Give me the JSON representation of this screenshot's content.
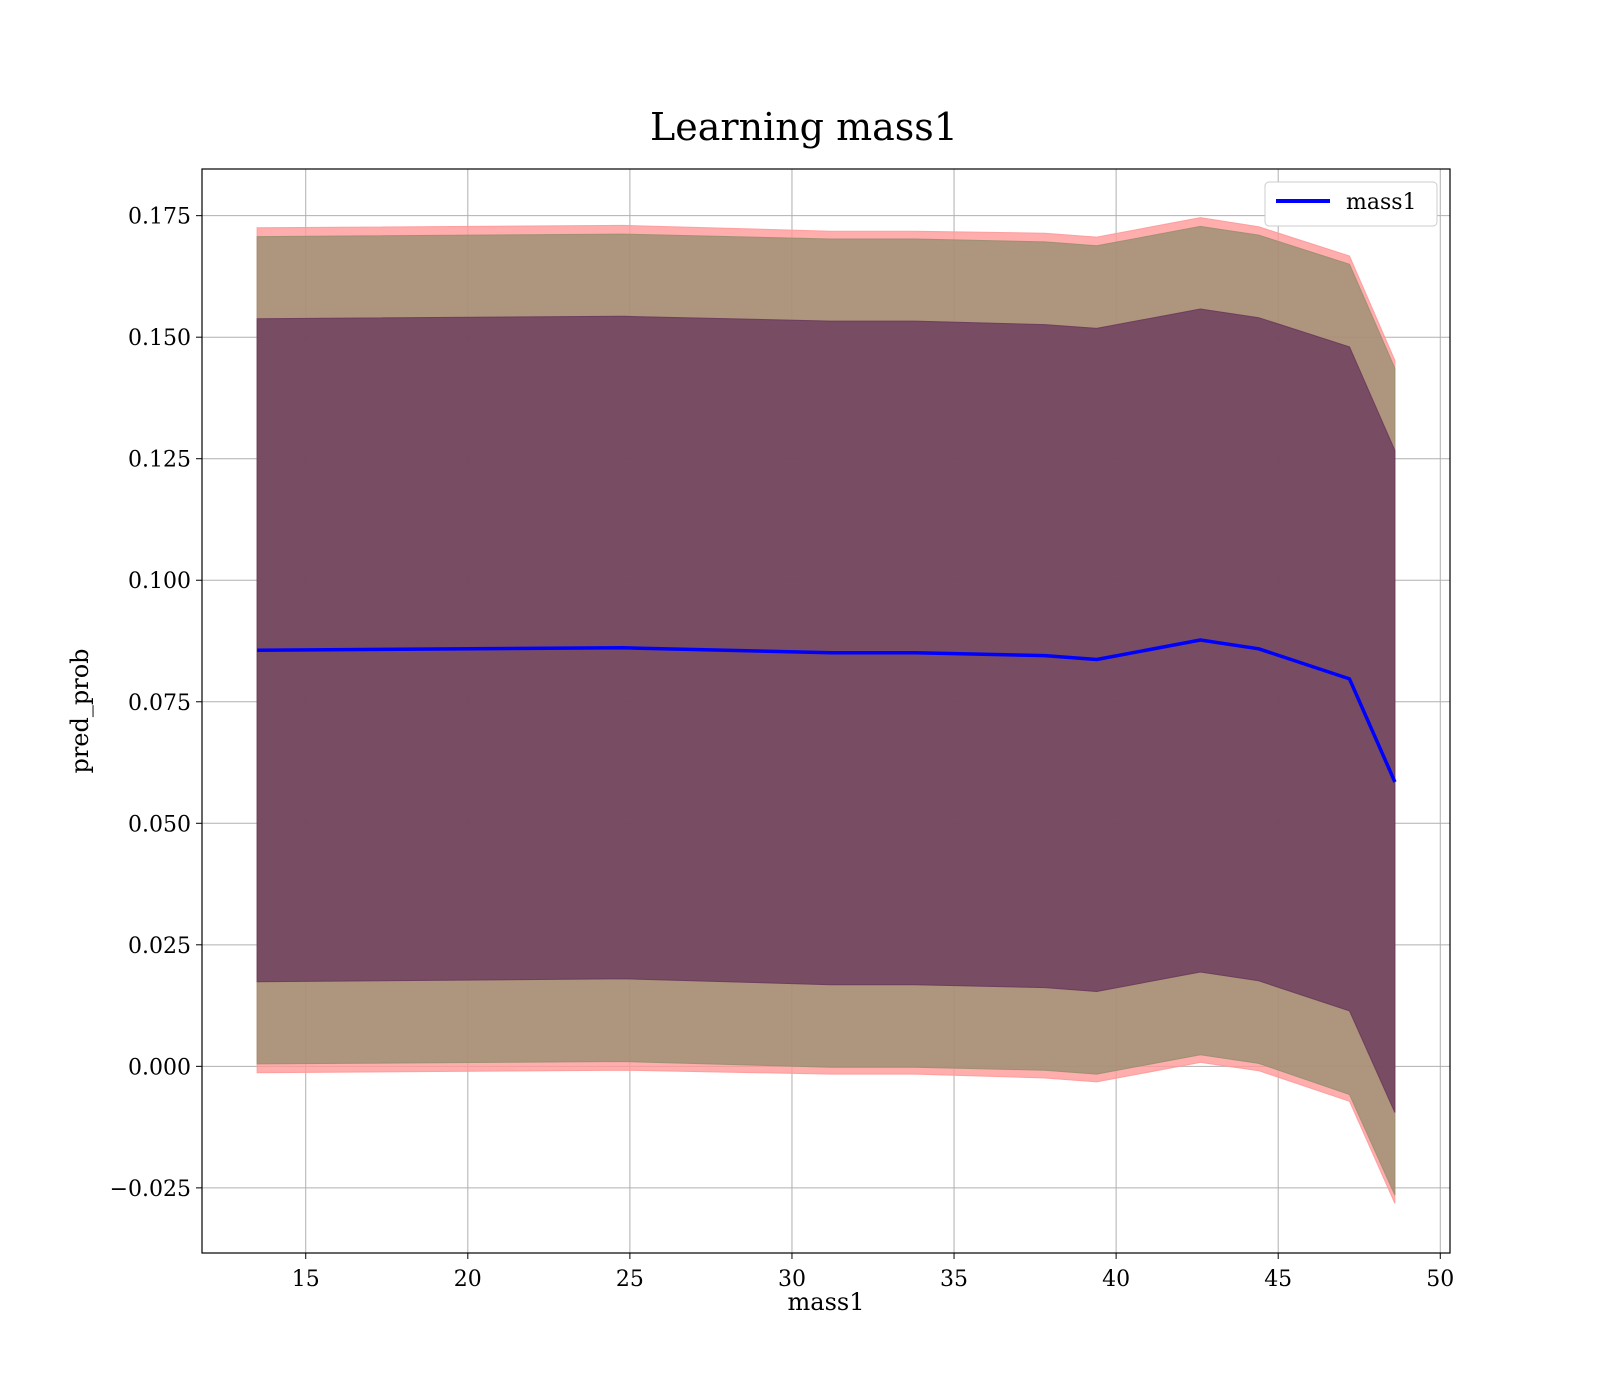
{
  "chart_data": {
    "type": "line",
    "title": "Learning mass1",
    "xlabel": "mass1",
    "ylabel": "pred_prob",
    "xlim": [
      11.8,
      50.3
    ],
    "ylim": [
      -0.0384,
      0.1846
    ],
    "xticks": [
      15,
      20,
      25,
      30,
      35,
      40,
      45,
      50
    ],
    "xtick_labels": [
      "15",
      "20",
      "25",
      "30",
      "35",
      "40",
      "45",
      "50"
    ],
    "yticks": [
      -0.025,
      0.0,
      0.025,
      0.05,
      0.075,
      0.1,
      0.125,
      0.15,
      0.175
    ],
    "ytick_labels": [
      "−0.025",
      "0.000",
      "0.025",
      "0.050",
      "0.075",
      "0.100",
      "0.125",
      "0.150",
      "0.175"
    ],
    "grid": true,
    "legend_position": "top-right",
    "x": [
      13.5,
      24.8,
      31.2,
      33.8,
      37.8,
      39.4,
      42.6,
      44.4,
      47.2,
      48.6
    ],
    "series": [
      {
        "name": "mass1",
        "color": "#0000ff",
        "values": [
          0.0856,
          0.0861,
          0.0851,
          0.0851,
          0.0845,
          0.0837,
          0.0877,
          0.0859,
          0.0797,
          0.0585
        ]
      }
    ],
    "bands": [
      {
        "color": "#ff9999",
        "lower": [
          -0.0013,
          -0.0008,
          -0.0016,
          -0.0016,
          -0.0024,
          -0.0032,
          0.0008,
          -0.0009,
          -0.0072,
          -0.0282
        ],
        "upper": [
          0.1725,
          0.173,
          0.1718,
          0.1718,
          0.1714,
          0.1706,
          0.1746,
          0.1727,
          0.1667,
          0.1452
        ]
      },
      {
        "color": "#9a8f70",
        "lower": [
          0.0005,
          0.001,
          -0.0002,
          -0.0002,
          -0.0008,
          -0.0016,
          0.0024,
          0.0006,
          -0.0058,
          -0.0265
        ],
        "upper": [
          0.1707,
          0.1712,
          0.1702,
          0.1702,
          0.1696,
          0.1688,
          0.1728,
          0.171,
          0.165,
          0.1436
        ]
      },
      {
        "color": "#6a3a5c",
        "lower": [
          0.0174,
          0.018,
          0.0168,
          0.0168,
          0.0162,
          0.0154,
          0.0194,
          0.0176,
          0.0114,
          -0.0095
        ],
        "upper": [
          0.1538,
          0.1543,
          0.1533,
          0.1533,
          0.1526,
          0.1518,
          0.1558,
          0.154,
          0.148,
          0.1267
        ]
      }
    ]
  }
}
